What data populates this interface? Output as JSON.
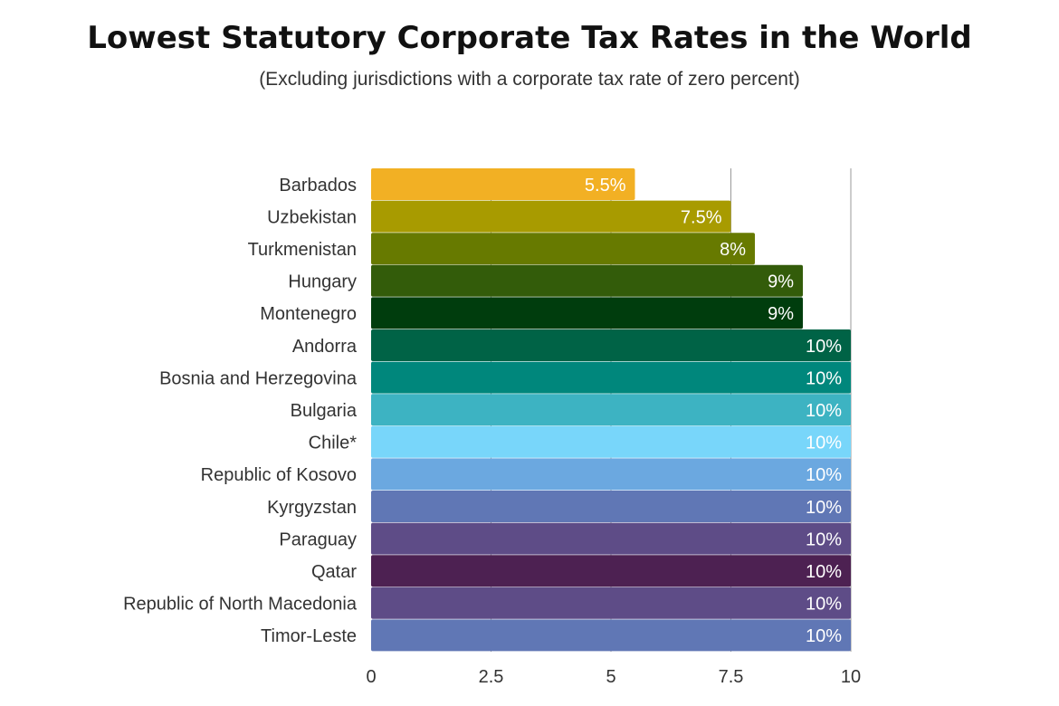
{
  "title": "Lowest Statutory Corporate Tax Rates in the World",
  "subtitle": "(Excluding jurisdictions with a corporate tax rate of zero percent)",
  "chart_data": {
    "type": "bar",
    "orientation": "horizontal",
    "title": "Lowest Statutory Corporate Tax Rates in the World",
    "subtitle": "(Excluding jurisdictions with a corporate tax rate of zero percent)",
    "xlabel": "",
    "ylabel": "",
    "xlim": [
      0,
      10
    ],
    "xticks": [
      "0",
      "2.5",
      "5",
      "7.5",
      "10"
    ],
    "grid": true,
    "categories": [
      "Barbados",
      "Uzbekistan",
      "Turkmenistan",
      "Hungary",
      "Montenegro",
      "Andorra",
      "Bosnia and Herzegovina",
      "Bulgaria",
      "Chile*",
      "Republic of Kosovo",
      "Kyrgyzstan",
      "Paraguay",
      "Qatar",
      "Republic of North Macedonia",
      "Timor-Leste"
    ],
    "values": [
      5.5,
      7.5,
      8,
      9,
      9,
      10,
      10,
      10,
      10,
      10,
      10,
      10,
      10,
      10,
      10
    ],
    "data_labels": [
      "5.5%",
      "7.5%",
      "8%",
      "9%",
      "9%",
      "10%",
      "10%",
      "10%",
      "10%",
      "10%",
      "10%",
      "10%",
      "10%",
      "10%",
      "10%"
    ],
    "colors": [
      "#F2B024",
      "#A89B00",
      "#677A00",
      "#335C0A",
      "#003D0D",
      "#006346",
      "#00877C",
      "#3DB3C2",
      "#78D6FA",
      "#6BA8E0",
      "#6077B5",
      "#5E4C87",
      "#4D2152",
      "#5E4C87",
      "#6077B5"
    ]
  }
}
